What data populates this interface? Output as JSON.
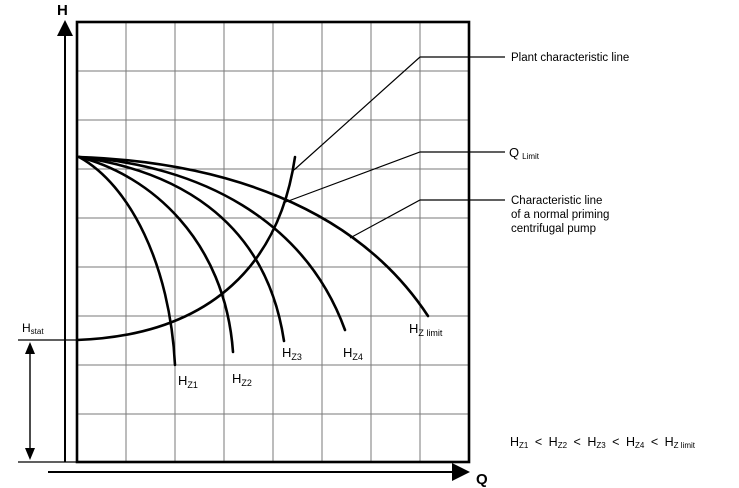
{
  "axes": {
    "y_label": "H",
    "x_label": "Q"
  },
  "h_stat": {
    "base": "H",
    "sub": "stat"
  },
  "annotations": {
    "plant_line": "Plant characteristic line",
    "q_limit": {
      "base": "Q",
      "sub": "Limit"
    },
    "pump_line": [
      "Characteristic line",
      "of a normal priming",
      "centrifugal pump"
    ]
  },
  "curve_labels": [
    {
      "base": "H",
      "sub": "Z1"
    },
    {
      "base": "H",
      "sub": "Z2"
    },
    {
      "base": "H",
      "sub": "Z3"
    },
    {
      "base": "H",
      "sub": "Z4"
    },
    {
      "base": "H",
      "sub": "Z limit"
    }
  ],
  "inequality": {
    "terms": [
      {
        "base": "H",
        "sub": "Z1"
      },
      {
        "base": "H",
        "sub": "Z2"
      },
      {
        "base": "H",
        "sub": "Z3"
      },
      {
        "base": "H",
        "sub": "Z4"
      },
      {
        "base": "H",
        "sub": "Z limit"
      }
    ],
    "operator": "<"
  }
}
